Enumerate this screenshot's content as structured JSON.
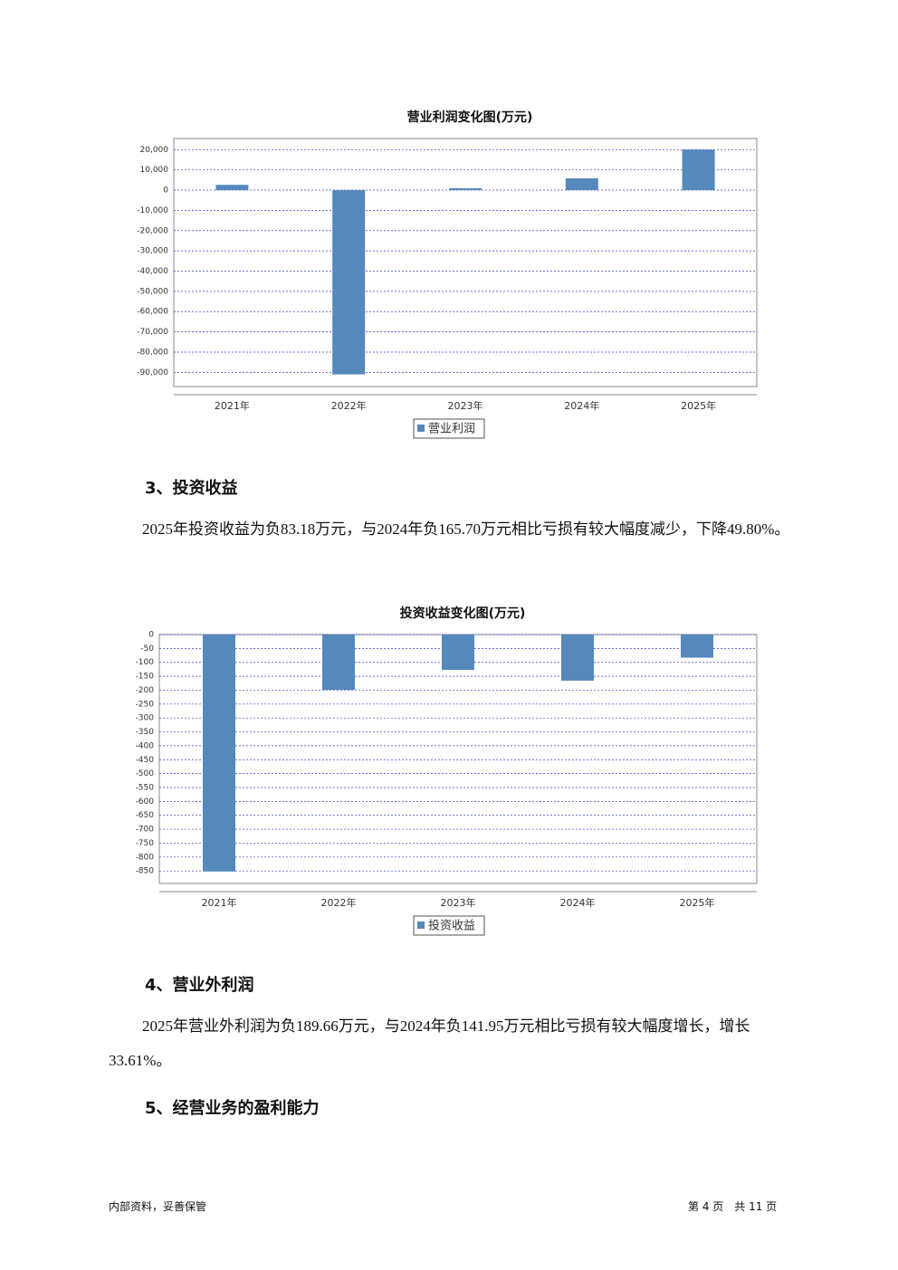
{
  "chart_data": [
    {
      "type": "bar",
      "title": "营业利润变化图(万元)",
      "categories": [
        "2021年",
        "2022年",
        "2023年",
        "2024年",
        "2025年"
      ],
      "series": [
        {
          "name": "营业利润",
          "color": "#5588bb",
          "values": [
            2600,
            -91000,
            900,
            5800,
            20000
          ]
        }
      ],
      "ylim": [
        -97000,
        25500
      ],
      "yticks": [
        {
          "value": 20000,
          "label": "20,000"
        },
        {
          "value": 10000,
          "label": "10,000"
        },
        0,
        {
          "value": -10000,
          "label": "-10,000"
        },
        {
          "value": -20000,
          "label": "-20,000"
        },
        {
          "value": -30000,
          "label": "-30,000"
        },
        {
          "value": -40000,
          "label": "-40,000"
        },
        {
          "value": -50000,
          "label": "-50,000"
        },
        {
          "value": -60000,
          "label": "-60,000"
        },
        {
          "value": -70000,
          "label": "-70,000"
        },
        {
          "value": -80000,
          "label": "-80,000"
        },
        {
          "value": -90000,
          "label": "-90,000"
        }
      ],
      "grid": true
    },
    {
      "type": "bar",
      "title": "投资收益变化图(万元)",
      "categories": [
        "2021年",
        "2022年",
        "2023年",
        "2024年",
        "2025年"
      ],
      "series": [
        {
          "name": "投资收益",
          "color": "#5588bb",
          "values": [
            -852,
            -199,
            -127,
            -165.7,
            -83.18
          ]
        }
      ],
      "ylim": [
        -895,
        0
      ],
      "yticks": [
        0,
        -50,
        -100,
        -150,
        -200,
        -250,
        -300,
        -350,
        -400,
        -450,
        -500,
        -550,
        -600,
        -650,
        -700,
        -750,
        -800,
        -850
      ],
      "grid": true
    }
  ],
  "sections": [
    {
      "heading": "3、投资收益",
      "paragraph": "2025年投资收益为负83.18万元，与2024年负165.70万元相比亏损有较大幅度减少，下降49.80%。"
    },
    {
      "heading": "4、营业外利润",
      "paragraph": "2025年营业外利润为负189.66万元，与2024年负141.95万元相比亏损有较大幅度增长，增长33.61%。"
    },
    {
      "heading": "5、经营业务的盈利能力"
    }
  ],
  "footer": {
    "left": "内部资料，妥善保管",
    "right": "第 4 页　共 11 页"
  }
}
